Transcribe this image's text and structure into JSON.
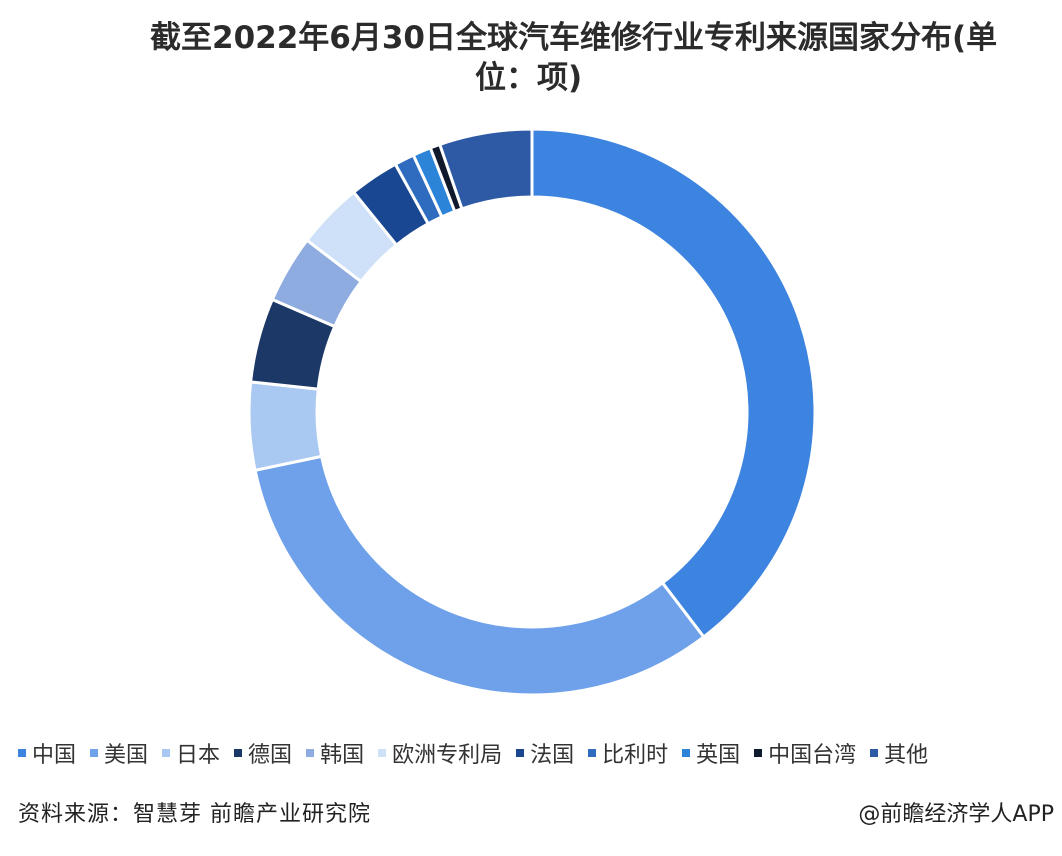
{
  "chart_data": {
    "type": "pie",
    "title": "截至2022年6月30日全球汽车维修行业专利来源国家分布(单位：项)",
    "title_line1": "截至2022年6月30日全球汽车维修行业专利来源国家分布(单",
    "title_line2": "位：项)",
    "donut": true,
    "legend_position": "bottom",
    "categories": [
      "中国",
      "美国",
      "日本",
      "德国",
      "韩国",
      "欧洲专利局",
      "法国",
      "比利时",
      "英国",
      "中国台湾",
      "其他"
    ],
    "values": [
      42.0,
      34.0,
      5.3,
      5.1,
      4.1,
      4.0,
      3.0,
      1.2,
      1.1,
      0.6,
      5.6
    ],
    "colors": [
      "#3d84e0",
      "#6ea1ea",
      "#a9c8f2",
      "#1c3866",
      "#8eacdf",
      "#cfe1f8",
      "#1a4791",
      "#2f6cc0",
      "#2c84d8",
      "#111a2c",
      "#2e5aa5"
    ]
  },
  "source": "资料来源：智慧芽 前瞻产业研究院",
  "watermark": "@前瞻经济学人APP"
}
